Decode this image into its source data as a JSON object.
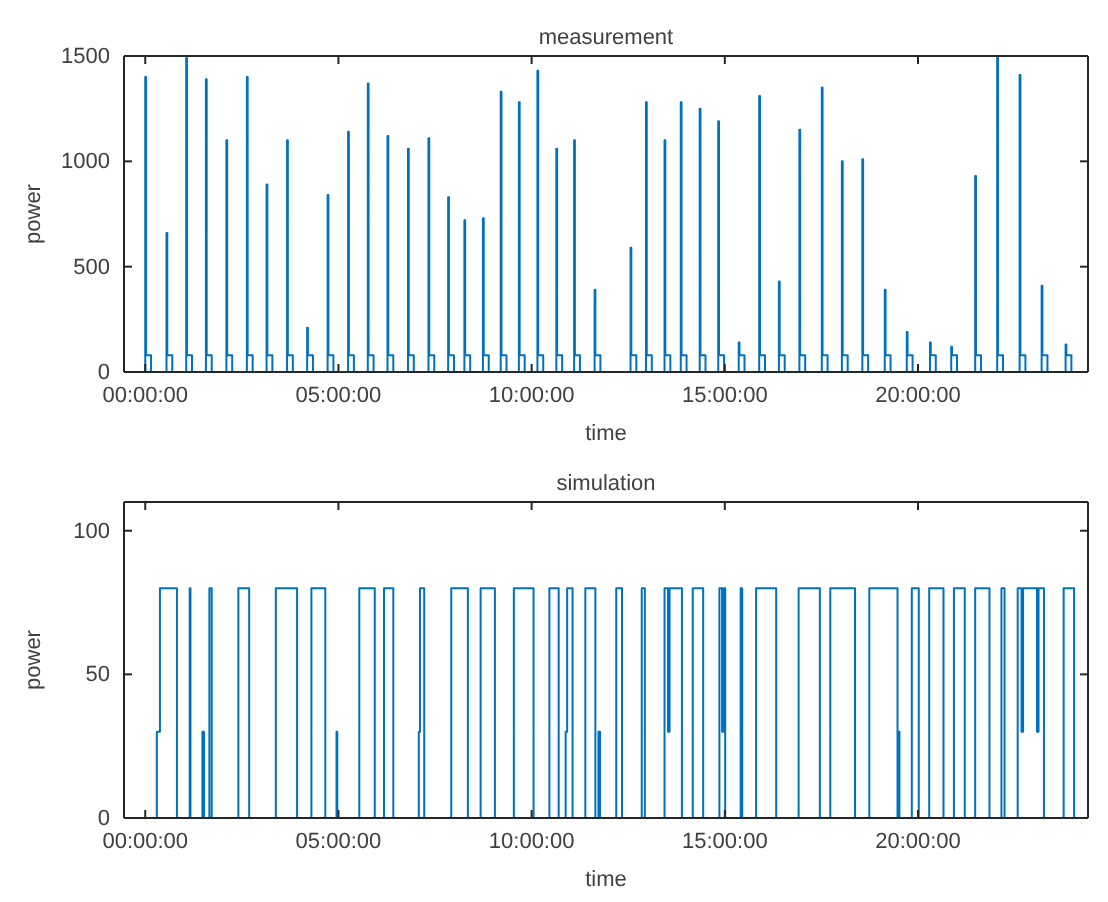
{
  "chart_data": [
    {
      "type": "step",
      "title": "measurement",
      "xlabel": "time",
      "ylabel": "power",
      "xlim": [
        -0.55,
        24.4
      ],
      "xticks": [
        {
          "value": 0,
          "label": "00:00:00"
        },
        {
          "value": 5,
          "label": "05:00:00"
        },
        {
          "value": 10,
          "label": "10:00:00"
        },
        {
          "value": 15,
          "label": "15:00:00"
        },
        {
          "value": 20,
          "label": "20:00:00"
        }
      ],
      "ylim": [
        0,
        1500
      ],
      "yticks": [
        0,
        500,
        1000,
        1500
      ],
      "x": [
        -0.02,
        0,
        0.02,
        0.15,
        0.55,
        0.57,
        0.7,
        1.06,
        1.08,
        1.21,
        1.57,
        1.59,
        1.72,
        2.1,
        2.12,
        2.25,
        2.63,
        2.65,
        2.78,
        3.14,
        3.16,
        3.29,
        3.67,
        3.69,
        3.82,
        4.19,
        4.21,
        4.34,
        4.72,
        4.74,
        4.87,
        5.25,
        5.27,
        5.4,
        5.76,
        5.78,
        5.91,
        6.27,
        6.29,
        6.42,
        6.8,
        6.82,
        6.95,
        7.33,
        7.35,
        7.48,
        7.84,
        7.86,
        7.99,
        8.26,
        8.28,
        8.41,
        8.74,
        8.76,
        8.89,
        9.2,
        9.22,
        9.35,
        9.67,
        9.69,
        9.82,
        10.15,
        10.17,
        10.3,
        10.64,
        10.66,
        10.79,
        11.1,
        11.12,
        11.25,
        11.63,
        11.65,
        11.78,
        12.56,
        12.58,
        12.71,
        12.96,
        12.98,
        13.11,
        13.44,
        13.46,
        13.59,
        13.86,
        13.88,
        14.01,
        14.35,
        14.37,
        14.5,
        14.83,
        14.85,
        14.98,
        15.36,
        15.38,
        15.51,
        15.89,
        15.91,
        16.04,
        16.4,
        16.42,
        16.55,
        16.93,
        16.95,
        17.08,
        17.51,
        17.53,
        17.66,
        18.03,
        18.05,
        18.18,
        18.56,
        18.58,
        18.71,
        19.14,
        19.16,
        19.29,
        19.71,
        19.73,
        19.86,
        20.31,
        20.33,
        20.46,
        20.86,
        20.88,
        21.01,
        21.48,
        21.5,
        21.63,
        22.05,
        22.07,
        22.2,
        22.63,
        22.65,
        22.78,
        23.2,
        23.22,
        23.35,
        23.82,
        23.84,
        23.97,
        24.0
      ],
      "series": [
        {
          "color": "#0072bd",
          "values": [
            0,
            1400,
            80,
            0,
            660,
            80,
            0,
            1490,
            80,
            0,
            1390,
            80,
            0,
            1100,
            80,
            0,
            1400,
            80,
            0,
            890,
            80,
            0,
            1100,
            80,
            0,
            210,
            80,
            0,
            840,
            80,
            0,
            1140,
            80,
            0,
            1370,
            80,
            0,
            1120,
            80,
            0,
            1060,
            80,
            0,
            1110,
            80,
            0,
            830,
            80,
            0,
            720,
            80,
            0,
            730,
            80,
            0,
            1330,
            80,
            0,
            1280,
            80,
            0,
            1430,
            80,
            0,
            1060,
            80,
            0,
            1100,
            80,
            0,
            390,
            80,
            0,
            590,
            80,
            0,
            1280,
            80,
            0,
            1100,
            80,
            0,
            1280,
            80,
            0,
            1250,
            80,
            0,
            1190,
            80,
            0,
            140,
            80,
            0,
            1310,
            80,
            0,
            430,
            80,
            0,
            1150,
            80,
            0,
            1350,
            80,
            0,
            1000,
            80,
            0,
            1010,
            80,
            0,
            390,
            80,
            0,
            190,
            80,
            0,
            140,
            80,
            0,
            120,
            80,
            0,
            930,
            80,
            0,
            1500,
            80,
            0,
            1410,
            80,
            0,
            410,
            80,
            0,
            130,
            80,
            0,
            0
          ]
        }
      ]
    },
    {
      "type": "step",
      "title": "simulation",
      "xlabel": "time",
      "ylabel": "power",
      "xlim": [
        -0.55,
        24.4
      ],
      "xticks": [
        {
          "value": 0,
          "label": "00:00:00"
        },
        {
          "value": 5,
          "label": "05:00:00"
        },
        {
          "value": 10,
          "label": "10:00:00"
        },
        {
          "value": 15,
          "label": "15:00:00"
        },
        {
          "value": 20,
          "label": "20:00:00"
        }
      ],
      "ylim": [
        0,
        110
      ],
      "yticks": [
        0,
        50,
        100
      ],
      "x": [
        0.02,
        0.3,
        0.38,
        0.82,
        1.15,
        1.17,
        1.48,
        1.52,
        1.66,
        1.68,
        1.7,
        1.72,
        2.41,
        2.69,
        3.38,
        3.93,
        4.3,
        4.66,
        4.95,
        4.97,
        5.54,
        5.94,
        6.18,
        6.24,
        6.26,
        6.42,
        7.08,
        7.11,
        7.22,
        7.92,
        8.35,
        8.68,
        9.05,
        9.54,
        10.05,
        10.46,
        10.48,
        10.5,
        10.58,
        10.62,
        10.7,
        10.88,
        10.92,
        11.06,
        11.39,
        11.65,
        11.73,
        11.77,
        12.19,
        12.34,
        12.85,
        12.93,
        13.44,
        13.53,
        13.57,
        13.89,
        14.17,
        14.44,
        14.86,
        14.93,
        14.97,
        15.01,
        15.41,
        15.45,
        15.81,
        16.33,
        16.91,
        17.46,
        17.73,
        18.37,
        18.74,
        18.98,
        19.0,
        19.47,
        19.5,
        19.52,
        19.84,
        20.02,
        20.29,
        20.66,
        20.93,
        21.21,
        21.48,
        21.85,
        22.16,
        22.18,
        22.22,
        22.24,
        22.58,
        22.68,
        22.72,
        23.08,
        23.12,
        23.2,
        23.24,
        23.26,
        23.77,
        24.04
      ],
      "series": [
        {
          "color": "#0072bd",
          "values": [
            0,
            30,
            80,
            0,
            80,
            0,
            30,
            0,
            80,
            null,
            80,
            0,
            80,
            0,
            80,
            0,
            80,
            0,
            30,
            0,
            80,
            0,
            80,
            null,
            80,
            0,
            30,
            80,
            0,
            80,
            0,
            80,
            0,
            80,
            0,
            80,
            null,
            80,
            null,
            80,
            0,
            30,
            80,
            0,
            80,
            0,
            30,
            0,
            80,
            0,
            80,
            0,
            80,
            30,
            80,
            0,
            80,
            0,
            80,
            30,
            80,
            0,
            80,
            0,
            80,
            0,
            80,
            0,
            80,
            0,
            80,
            null,
            80,
            0,
            30,
            0,
            80,
            0,
            80,
            0,
            80,
            0,
            80,
            0,
            80,
            null,
            80,
            0,
            80,
            30,
            80,
            30,
            80,
            null,
            80,
            0,
            80,
            0
          ]
        }
      ]
    }
  ]
}
